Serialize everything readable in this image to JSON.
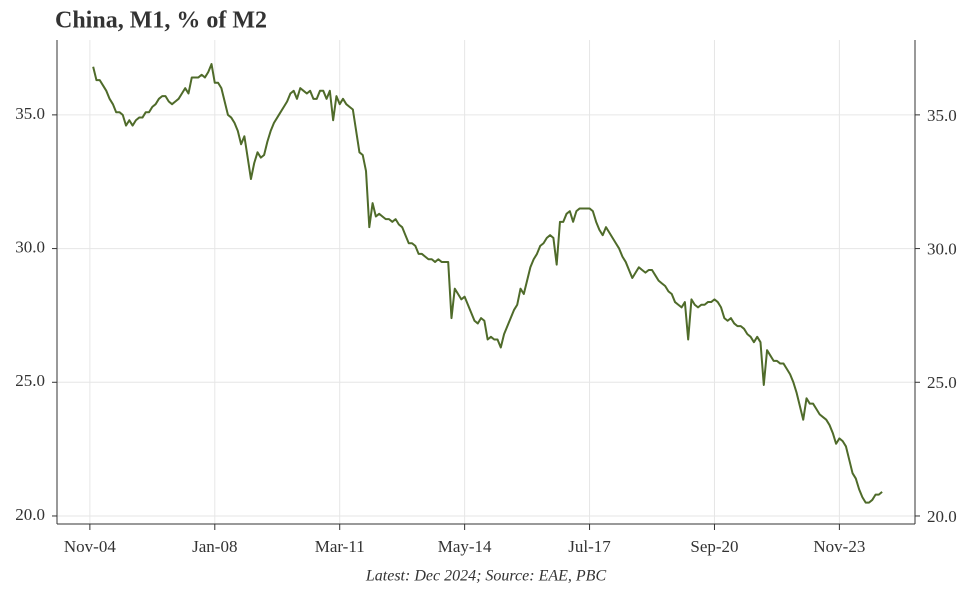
{
  "chart_data": {
    "type": "line",
    "title": "China, M1, % of M2",
    "caption": "Latest: Dec 2024; Source: EAE, PBC",
    "xlim": [
      "2004-01",
      "2025-10"
    ],
    "xticks": [
      {
        "value": "2004-11",
        "label": "Nov-04"
      },
      {
        "value": "2008-01",
        "label": "Jan-08"
      },
      {
        "value": "2011-03",
        "label": "Mar-11"
      },
      {
        "value": "2014-05",
        "label": "May-14"
      },
      {
        "value": "2017-07",
        "label": "Jul-17"
      },
      {
        "value": "2020-09",
        "label": "Sep-20"
      },
      {
        "value": "2023-11",
        "label": "Nov-23"
      }
    ],
    "ylim": [
      19.7,
      37.8
    ],
    "yticks": [
      {
        "value": 20,
        "label": "20.0"
      },
      {
        "value": 25,
        "label": "25.0"
      },
      {
        "value": 30,
        "label": "30.0"
      },
      {
        "value": 35,
        "label": "35.0"
      }
    ],
    "grid": true,
    "x": [
      "2004-12",
      "2005-01",
      "2005-02",
      "2005-03",
      "2005-04",
      "2005-05",
      "2005-06",
      "2005-07",
      "2005-08",
      "2005-09",
      "2005-10",
      "2005-11",
      "2005-12",
      "2006-01",
      "2006-02",
      "2006-03",
      "2006-04",
      "2006-05",
      "2006-06",
      "2006-07",
      "2006-08",
      "2006-09",
      "2006-10",
      "2006-11",
      "2006-12",
      "2007-01",
      "2007-02",
      "2007-03",
      "2007-04",
      "2007-05",
      "2007-06",
      "2007-07",
      "2007-08",
      "2007-09",
      "2007-10",
      "2007-11",
      "2007-12",
      "2008-01",
      "2008-02",
      "2008-03",
      "2008-04",
      "2008-05",
      "2008-06",
      "2008-07",
      "2008-08",
      "2008-09",
      "2008-10",
      "2008-11",
      "2008-12",
      "2009-01",
      "2009-02",
      "2009-03",
      "2009-04",
      "2009-05",
      "2009-06",
      "2009-07",
      "2009-08",
      "2009-09",
      "2009-10",
      "2009-11",
      "2009-12",
      "2010-01",
      "2010-02",
      "2010-03",
      "2010-04",
      "2010-05",
      "2010-06",
      "2010-07",
      "2010-08",
      "2010-09",
      "2010-10",
      "2010-11",
      "2010-12",
      "2011-01",
      "2011-02",
      "2011-03",
      "2011-04",
      "2011-05",
      "2011-06",
      "2011-07",
      "2011-08",
      "2011-09",
      "2011-10",
      "2011-11",
      "2011-12",
      "2012-01",
      "2012-02",
      "2012-03",
      "2012-04",
      "2012-05",
      "2012-06",
      "2012-07",
      "2012-08",
      "2012-09",
      "2012-10",
      "2012-11",
      "2012-12",
      "2013-01",
      "2013-02",
      "2013-03",
      "2013-04",
      "2013-05",
      "2013-06",
      "2013-07",
      "2013-08",
      "2013-09",
      "2013-10",
      "2013-11",
      "2013-12",
      "2014-01",
      "2014-02",
      "2014-03",
      "2014-04",
      "2014-05",
      "2014-06",
      "2014-07",
      "2014-08",
      "2014-09",
      "2014-10",
      "2014-11",
      "2014-12",
      "2015-01",
      "2015-02",
      "2015-03",
      "2015-04",
      "2015-05",
      "2015-06",
      "2015-07",
      "2015-08",
      "2015-09",
      "2015-10",
      "2015-11",
      "2015-12",
      "2016-01",
      "2016-02",
      "2016-03",
      "2016-04",
      "2016-05",
      "2016-06",
      "2016-07",
      "2016-08",
      "2016-09",
      "2016-10",
      "2016-11",
      "2016-12",
      "2017-01",
      "2017-02",
      "2017-03",
      "2017-04",
      "2017-05",
      "2017-06",
      "2017-07",
      "2017-08",
      "2017-09",
      "2017-10",
      "2017-11",
      "2017-12",
      "2018-01",
      "2018-02",
      "2018-03",
      "2018-04",
      "2018-05",
      "2018-06",
      "2018-07",
      "2018-08",
      "2018-09",
      "2018-10",
      "2018-11",
      "2018-12",
      "2019-01",
      "2019-02",
      "2019-03",
      "2019-04",
      "2019-05",
      "2019-06",
      "2019-07",
      "2019-08",
      "2019-09",
      "2019-10",
      "2019-11",
      "2019-12",
      "2020-01",
      "2020-02",
      "2020-03",
      "2020-04",
      "2020-05",
      "2020-06",
      "2020-07",
      "2020-08",
      "2020-09",
      "2020-10",
      "2020-11",
      "2020-12",
      "2021-01",
      "2021-02",
      "2021-03",
      "2021-04",
      "2021-05",
      "2021-06",
      "2021-07",
      "2021-08",
      "2021-09",
      "2021-10",
      "2021-11",
      "2021-12",
      "2022-01",
      "2022-02",
      "2022-03",
      "2022-04",
      "2022-05",
      "2022-06",
      "2022-07",
      "2022-08",
      "2022-09",
      "2022-10",
      "2022-11",
      "2022-12",
      "2023-01",
      "2023-02",
      "2023-03",
      "2023-04",
      "2023-05",
      "2023-06",
      "2023-07",
      "2023-08",
      "2023-09",
      "2023-10",
      "2023-11",
      "2023-12",
      "2024-01",
      "2024-02",
      "2024-03",
      "2024-04",
      "2024-05",
      "2024-06",
      "2024-07",
      "2024-08",
      "2024-09",
      "2024-10",
      "2024-11",
      "2024-12"
    ],
    "series": [
      {
        "color": "#4f6b2a",
        "values": [
          36.8,
          36.3,
          36.3,
          36.1,
          35.9,
          35.6,
          35.4,
          35.1,
          35.1,
          35.0,
          34.6,
          34.8,
          34.6,
          34.8,
          34.9,
          34.9,
          35.1,
          35.1,
          35.3,
          35.4,
          35.6,
          35.7,
          35.7,
          35.5,
          35.4,
          35.5,
          35.6,
          35.8,
          36.0,
          35.8,
          36.4,
          36.4,
          36.4,
          36.5,
          36.4,
          36.6,
          36.9,
          36.2,
          36.2,
          36.0,
          35.5,
          35.0,
          34.9,
          34.7,
          34.4,
          33.9,
          34.2,
          33.4,
          32.6,
          33.2,
          33.6,
          33.4,
          33.5,
          34.0,
          34.4,
          34.7,
          34.9,
          35.1,
          35.3,
          35.5,
          35.8,
          35.9,
          35.6,
          36.0,
          35.9,
          35.8,
          35.9,
          35.6,
          35.6,
          35.9,
          35.9,
          35.6,
          35.9,
          34.8,
          35.7,
          35.4,
          35.6,
          35.4,
          35.3,
          35.2,
          34.4,
          33.6,
          33.5,
          32.9,
          30.8,
          31.7,
          31.2,
          31.3,
          31.2,
          31.1,
          31.1,
          31.0,
          31.1,
          30.9,
          30.8,
          30.5,
          30.2,
          30.2,
          30.1,
          29.8,
          29.8,
          29.7,
          29.6,
          29.6,
          29.5,
          29.6,
          29.5,
          29.5,
          29.5,
          27.4,
          28.5,
          28.3,
          28.1,
          28.2,
          27.9,
          27.6,
          27.3,
          27.2,
          27.4,
          27.3,
          26.6,
          26.7,
          26.6,
          26.6,
          26.3,
          26.8,
          27.1,
          27.4,
          27.7,
          27.9,
          28.5,
          28.3,
          28.8,
          29.3,
          29.6,
          29.8,
          30.1,
          30.2,
          30.4,
          30.5,
          30.4,
          29.4,
          31.0,
          31.0,
          31.3,
          31.4,
          31.0,
          31.4,
          31.5,
          31.5,
          31.5,
          31.5,
          31.4,
          31.0,
          30.7,
          30.5,
          30.8,
          30.6,
          30.4,
          30.2,
          30.0,
          29.7,
          29.5,
          29.2,
          28.9,
          29.1,
          29.3,
          29.2,
          29.1,
          29.2,
          29.2,
          29.0,
          28.8,
          28.7,
          28.6,
          28.4,
          28.3,
          28.0,
          27.9,
          27.8,
          28.0,
          26.6,
          28.1,
          27.9,
          27.8,
          27.9,
          27.9,
          28.0,
          28.0,
          28.1,
          28.0,
          27.8,
          27.4,
          27.3,
          27.4,
          27.2,
          27.1,
          27.1,
          27.0,
          26.8,
          26.7,
          26.5,
          26.7,
          26.5,
          24.9,
          26.2,
          26.0,
          25.8,
          25.8,
          25.7,
          25.7,
          25.5,
          25.3,
          25.0,
          24.6,
          24.1,
          23.6,
          24.4,
          24.2,
          24.2,
          24.0,
          23.8,
          23.7,
          23.6,
          23.4,
          23.1,
          22.7,
          22.9,
          22.8,
          22.6,
          22.1,
          21.6,
          21.4,
          21.0,
          20.7,
          20.5,
          20.5,
          20.6,
          20.8,
          20.8,
          20.9
        ]
      }
    ]
  }
}
